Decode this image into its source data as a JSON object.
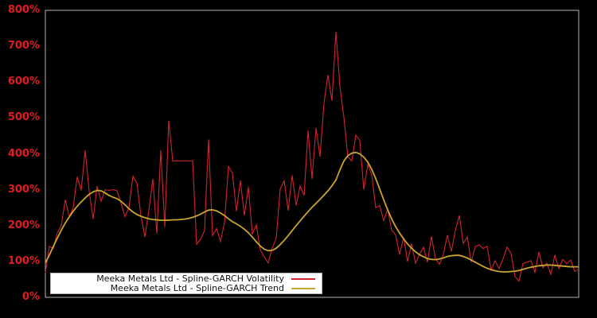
{
  "chart_data": {
    "type": "line",
    "title": "",
    "background_color": "#000000",
    "frame_color": "#b3b3b3",
    "tick_label_color": "#e11b22",
    "grid": false,
    "legend_position": "lower-left",
    "x_axis": {
      "tick_labels_visible": false,
      "label": ""
    },
    "y_axis": {
      "label": "",
      "unit": "%",
      "ylim": [
        0,
        800
      ],
      "tick_step_pct": 100,
      "tick_labels": [
        "800%",
        "700%",
        "600%",
        "500%",
        "400%",
        "300%",
        "200%",
        "100%",
        "0%"
      ]
    },
    "series": [
      {
        "name": "Meeka Metals Ltd - Spline-GARCH Volatility",
        "color": "#d2232e",
        "line_width": 1.1,
        "values_pct": [
          68,
          142,
          136,
          180,
          200,
          272,
          225,
          250,
          336,
          298,
          410,
          296,
          218,
          310,
          268,
          300,
          298,
          300,
          297,
          262,
          225,
          250,
          338,
          318,
          228,
          168,
          242,
          330,
          178,
          410,
          196,
          492,
          380,
          381,
          380,
          381,
          380,
          381,
          148,
          162,
          186,
          440,
          172,
          192,
          156,
          208,
          365,
          346,
          240,
          326,
          228,
          308,
          176,
          202,
          132,
          112,
          96,
          138,
          164,
          302,
          325,
          242,
          340,
          256,
          310,
          284,
          465,
          330,
          472,
          392,
          540,
          620,
          548,
          740,
          588,
          502,
          392,
          380,
          452,
          438,
          300,
          370,
          342,
          250,
          256,
          214,
          246,
          188,
          174,
          120,
          167,
          100,
          150,
          95,
          120,
          140,
          98,
          170,
          108,
          92,
          120,
          173,
          128,
          186,
          228,
          150,
          168,
          98,
          142,
          146,
          136,
          142,
          76,
          102,
          80,
          108,
          140,
          122,
          58,
          45,
          94,
          98,
          102,
          70,
          126,
          82,
          95,
          64,
          118,
          80,
          106,
          94,
          104,
          72,
          78
        ]
      },
      {
        "name": "Meeka Metals Ltd - Spline-GARCH Trend",
        "color": "#c9a42e",
        "line_width": 1.8,
        "values_pct": [
          96,
          118,
          142,
          165,
          187,
          207,
          224,
          240,
          254,
          266,
          277,
          287,
          294,
          298,
          297,
          291,
          284,
          279,
          275,
          268,
          258,
          247,
          238,
          231,
          226,
          222,
          219,
          217,
          216,
          215,
          215,
          215,
          216,
          216,
          217,
          218,
          220,
          223,
          227,
          232,
          238,
          243,
          244,
          241,
          235,
          228,
          219,
          211,
          205,
          198,
          190,
          180,
          168,
          155,
          143,
          134,
          130,
          131,
          137,
          147,
          159,
          172,
          186,
          200,
          213,
          226,
          239,
          251,
          262,
          273,
          285,
          297,
          311,
          327,
          355,
          380,
          395,
          402,
          404,
          400,
          391,
          377,
          357,
          331,
          302,
          272,
          244,
          219,
          197,
          179,
          163,
          149,
          137,
          127,
          119,
          113,
          108,
          106,
          105,
          107,
          110,
          114,
          116,
          117,
          117,
          114,
          110,
          104,
          98,
          92,
          86,
          81,
          77,
          74,
          72,
          71,
          71,
          72,
          73,
          75,
          78,
          81,
          84,
          86,
          88,
          89,
          90,
          90,
          89,
          88,
          87,
          86,
          85,
          85,
          85
        ]
      }
    ]
  },
  "legend": {
    "items": [
      {
        "label": "Meeka Metals Ltd - Spline-GARCH Volatility"
      },
      {
        "label": "Meeka Metals Ltd - Spline-GARCH Trend"
      }
    ]
  }
}
